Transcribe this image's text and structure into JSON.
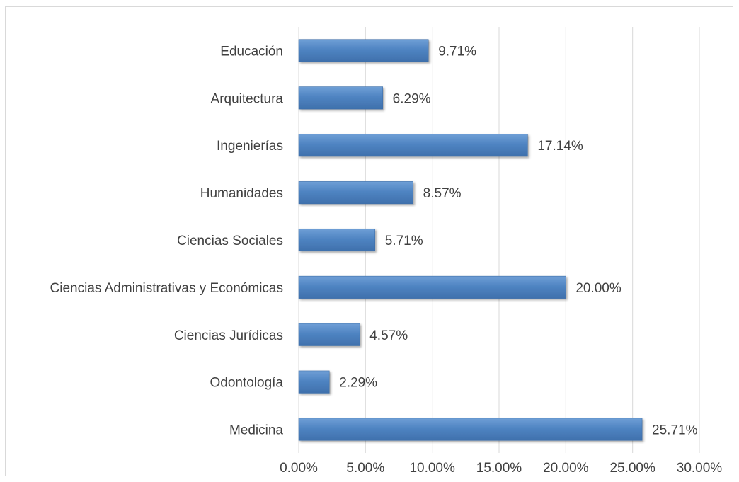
{
  "chart_data": {
    "type": "bar",
    "orientation": "horizontal",
    "title": "",
    "xlabel": "",
    "ylabel": "",
    "categories": [
      "Educación",
      "Arquitectura",
      "Ingenierías",
      "Humanidades",
      "Ciencias Sociales",
      "Ciencias Administrativas y Económicas",
      "Ciencias Jurídicas",
      "Odontología",
      "Medicina"
    ],
    "values": [
      9.71,
      6.29,
      17.14,
      8.57,
      5.71,
      20.0,
      4.57,
      2.29,
      25.71
    ],
    "value_labels": [
      "9.71%",
      "6.29%",
      "17.14%",
      "8.57%",
      "5.71%",
      "20.00%",
      "4.57%",
      "2.29%",
      "25.71%"
    ],
    "xlim": [
      0,
      30
    ],
    "x_ticks": [
      0,
      5,
      10,
      15,
      20,
      25,
      30
    ],
    "x_tick_labels": [
      "0.00%",
      "5.00%",
      "10.00%",
      "15.00%",
      "20.00%",
      "25.00%",
      "30.00%"
    ],
    "grid": "vertical",
    "legend": "none",
    "bar_color": "#4a7ebb",
    "bar_color_light": "#6b9bd2",
    "grid_color": "#d9d9d9"
  }
}
